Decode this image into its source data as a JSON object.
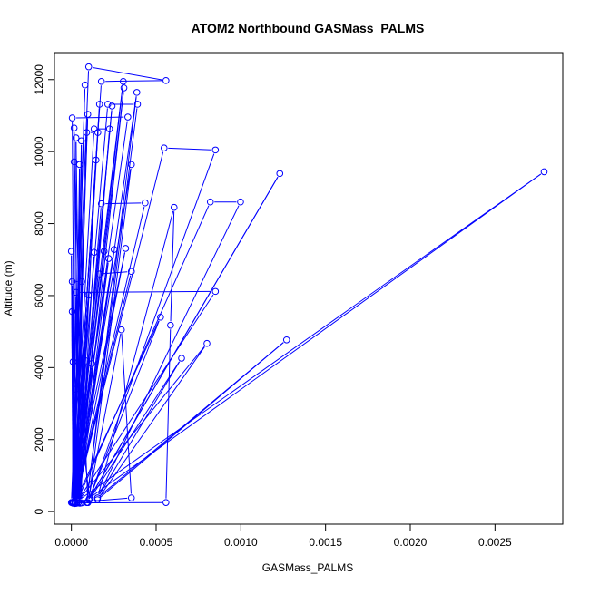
{
  "chart_data": {
    "type": "line",
    "title": "ATOM2 Northbound GASMass_PALMS",
    "xlabel": "GASMass_PALMS",
    "ylabel": "Altitude (m)",
    "xlim": [
      -0.0001,
      0.0029
    ],
    "ylim": [
      -350,
      12750
    ],
    "x_ticks": [
      0,
      0.0005,
      0.001,
      0.0015,
      0.002,
      0.0025
    ],
    "x_tick_labels": [
      "0.0000",
      "0.0005",
      "0.0010",
      "0.0015",
      "0.0020",
      "0.0025"
    ],
    "y_ticks": [
      0,
      2000,
      4000,
      6000,
      8000,
      10000,
      12000
    ],
    "y_tick_labels": [
      "0",
      "2000",
      "4000",
      "6000",
      "8000",
      "10000",
      "12000"
    ],
    "grid": false,
    "color": "#0000ff",
    "series": [
      {
        "name": "GASMass_PALMS",
        "points": [
          [
            0.0,
            250
          ],
          [
            0.000102,
            12355
          ],
          [
            0.000558,
            11975
          ],
          [
            0.000177,
            11950
          ],
          [
            1e-05,
            230
          ],
          [
            8e-05,
            11850
          ],
          [
            5e-06,
            250
          ],
          [
            0.000306,
            11950
          ],
          [
            2e-05,
            220
          ],
          [
            0.00031,
            11770
          ],
          [
            4e-05,
            240
          ],
          [
            0.000386,
            11645
          ],
          [
            9e-05,
            250
          ],
          [
            0.00039,
            11315
          ],
          [
            0.000215,
            11315
          ],
          [
            1e-05,
            260
          ],
          [
            0.000166,
            11315
          ],
          [
            3e-05,
            230
          ],
          [
            0.00024,
            11265
          ],
          [
            2e-05,
            250
          ],
          [
            9.66e-05,
            11035
          ],
          [
            1e-05,
            240
          ],
          [
            0.000333,
            10960
          ],
          [
            5e-06,
            10935
          ],
          [
            2e-05,
            250
          ],
          [
            1.6e-05,
            10655
          ],
          [
            5e-05,
            230
          ],
          [
            0.000225,
            10630
          ],
          [
            0.000134,
            10630
          ],
          [
            1e-05,
            240
          ],
          [
            0.000156,
            10530
          ],
          [
            9e-05,
            10530
          ],
          [
            3e-05,
            250
          ],
          [
            2.7e-05,
            10380
          ],
          [
            6e-05,
            240
          ],
          [
            5.9e-05,
            10300
          ],
          [
            2e-05,
            230
          ],
          [
            0.000547,
            10100
          ],
          [
            0.00085,
            10045
          ],
          [
            9.7e-05,
            250
          ],
          [
            1.6e-05,
            9715
          ],
          [
            1e-05,
            250
          ],
          [
            0.000145,
            9765
          ],
          [
            4e-05,
            240
          ],
          [
            4.8e-05,
            9640
          ],
          [
            2e-05,
            250
          ],
          [
            0.000354,
            9640
          ],
          [
            0.000103,
            330
          ],
          [
            0.00123,
            9390
          ],
          [
            0.000108,
            380
          ],
          [
            0.00279,
            9440
          ],
          [
            2e-05,
            240
          ],
          [
            0.000435,
            8575
          ],
          [
            0.000177,
            8550
          ],
          [
            3e-05,
            250
          ],
          [
            0.00082,
            8600
          ],
          [
            0.000998,
            8600
          ],
          [
            0.000154,
            380
          ],
          [
            0.000606,
            8450
          ],
          [
            0.000585,
            5175
          ],
          [
            0.000558,
            250
          ],
          [
            1e-05,
            240
          ],
          [
            0.0,
            7230
          ],
          [
            1e-05,
            260
          ],
          [
            0.00032,
            7310
          ],
          [
            3e-05,
            230
          ],
          [
            0.000252,
            7280
          ],
          [
            2e-05,
            250
          ],
          [
            0.000193,
            7230
          ],
          [
            0.000134,
            7200
          ],
          [
            4e-05,
            240
          ],
          [
            0.00022,
            7030
          ],
          [
            1e-05,
            250
          ],
          [
            0.000166,
            6600
          ],
          [
            0.000354,
            6670
          ],
          [
            2e-05,
            230
          ],
          [
            5e-06,
            6390
          ],
          [
            6e-05,
            6390
          ],
          [
            3e-05,
            250
          ],
          [
            0.00085,
            6115
          ],
          [
            2.7e-05,
            6090
          ],
          [
            1e-05,
            240
          ],
          [
            0.0001,
            6010
          ],
          [
            2e-05,
            250
          ],
          [
            0.000526,
            5400
          ],
          [
            9.7e-05,
            250
          ],
          [
            0.000295,
            5050
          ],
          [
            0.000354,
            380
          ],
          [
            1e-05,
            250
          ],
          [
            5e-06,
            5555
          ],
          [
            3e-05,
            240
          ],
          [
            0.0008,
            4670
          ],
          [
            0.000154,
            330
          ],
          [
            0.00127,
            4770
          ],
          [
            0.000154,
            380
          ],
          [
            0.00065,
            4260
          ],
          [
            0.000108,
            340
          ],
          [
            1e-05,
            4160
          ],
          [
            2e-05,
            250
          ],
          [
            8.6e-05,
            4185
          ],
          [
            3e-05,
            240
          ],
          [
            0.00012,
            4110
          ],
          [
            1e-05,
            250
          ],
          [
            2.7e-05,
            3400
          ],
          [
            2e-05,
            240
          ]
        ]
      }
    ]
  }
}
